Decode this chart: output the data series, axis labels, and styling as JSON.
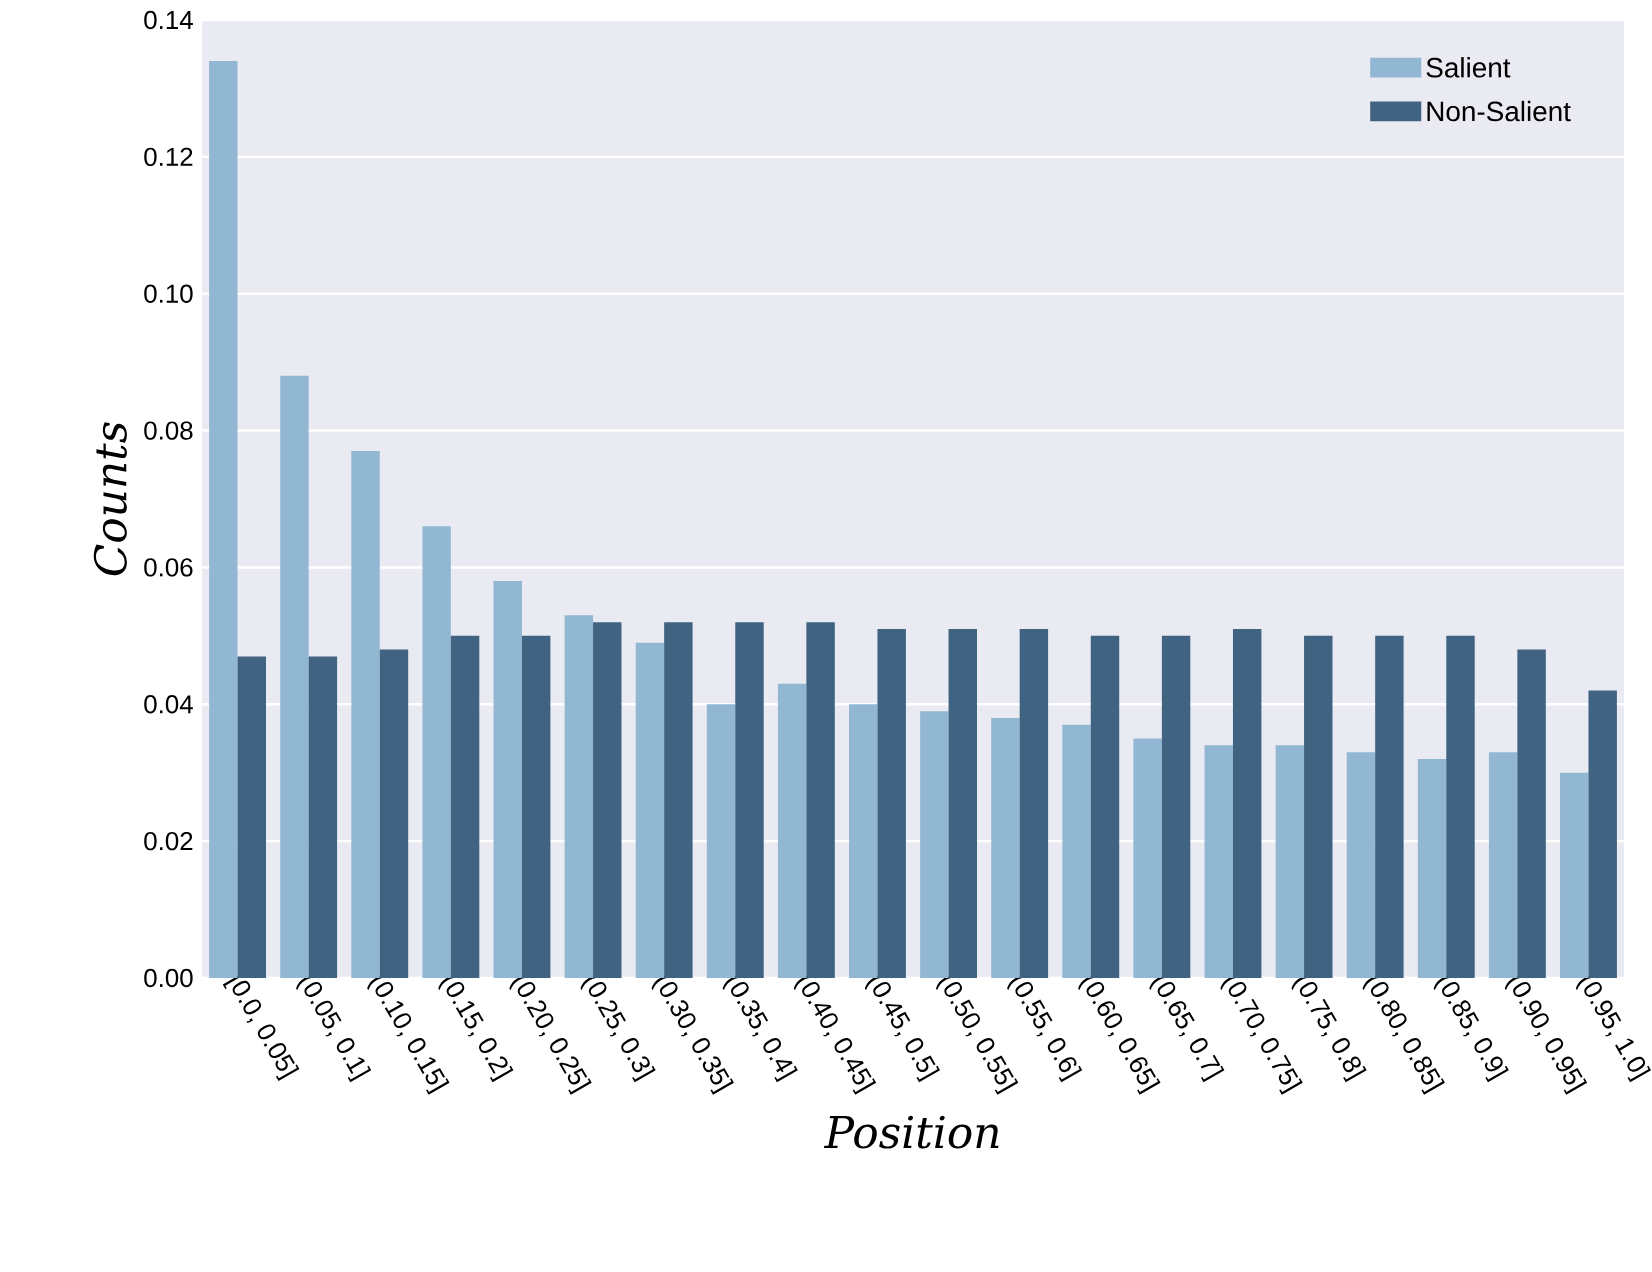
{
  "chart_data": {
    "type": "bar",
    "xlabel": "Position",
    "ylabel": "Counts",
    "categories": [
      "[0.0, 0.05]",
      "(0.05, 0.1]",
      "(0.10, 0.15]",
      "(0.15, 0.2]",
      "(0.20, 0.25]",
      "(0.25, 0.3]",
      "(0.30, 0.35]",
      "(0.35, 0.4]",
      "(0.40, 0.45]",
      "(0.45, 0.5]",
      "(0.50, 0.55]",
      "(0.55, 0.6]",
      "(0.60, 0.65]",
      "(0.65, 0.7]",
      "(0.70, 0.75]",
      "(0.75, 0.8]",
      "(0.80, 0.85]",
      "(0.85, 0.9]",
      "(0.90, 0.95]",
      "(0.95, 1.0]"
    ],
    "series": [
      {
        "name": "Salient",
        "color": "#92b7d3",
        "values": [
          0.134,
          0.088,
          0.077,
          0.066,
          0.058,
          0.053,
          0.049,
          0.04,
          0.043,
          0.04,
          0.039,
          0.038,
          0.037,
          0.035,
          0.034,
          0.034,
          0.033,
          0.032,
          0.033,
          0.03
        ]
      },
      {
        "name": "Non-Salient",
        "color": "#3f6380",
        "values": [
          0.047,
          0.047,
          0.048,
          0.05,
          0.05,
          0.052,
          0.052,
          0.052,
          0.052,
          0.051,
          0.051,
          0.051,
          0.05,
          0.05,
          0.051,
          0.05,
          0.05,
          0.05,
          0.048,
          0.042
        ]
      }
    ],
    "ylim": [
      0,
      0.14
    ],
    "yticks": [
      {
        "value": 0,
        "label": "0.00"
      },
      {
        "value": 0.02,
        "label": "0.02"
      },
      {
        "value": 0.04,
        "label": "0.04"
      },
      {
        "value": 0.06,
        "label": "0.06"
      },
      {
        "value": 0.08,
        "label": "0.08"
      },
      {
        "value": 0.1,
        "label": "0.10"
      },
      {
        "value": 0.12,
        "label": "0.12"
      },
      {
        "value": 0.14,
        "label": "0.14"
      }
    ],
    "grid": "y",
    "legend": "top right"
  }
}
